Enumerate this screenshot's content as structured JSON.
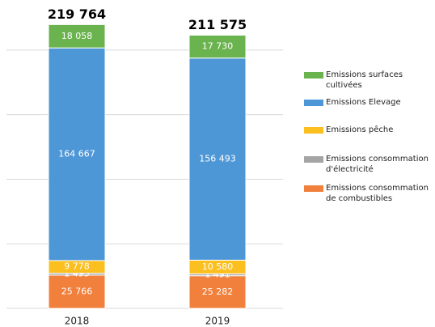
{
  "chart_data": {
    "type": "stacked_bar",
    "categories": [
      "2018",
      "2019"
    ],
    "series": [
      {
        "name": "Emissions consommation de combustibles",
        "color": "#f0803c",
        "values": [
          25766,
          25282
        ],
        "value_labels": [
          "25 766",
          "25 282"
        ]
      },
      {
        "name": "Emissions consommation d'électricité",
        "color": "#a5a5a5",
        "values": [
          1495,
          1491
        ],
        "value_labels": [
          "1 495",
          "1 491"
        ]
      },
      {
        "name": "Emissions pêche",
        "color": "#fbbf1f",
        "values": [
          9778,
          10580
        ],
        "value_labels": [
          "9 778",
          "10 580"
        ]
      },
      {
        "name": "Emissions Elevage",
        "color": "#4e97d6",
        "values": [
          164667,
          156493
        ],
        "value_labels": [
          "164 667",
          "156 493"
        ]
      },
      {
        "name": "Emissions surfaces cultivées",
        "color": "#6ab34f",
        "values": [
          18058,
          17730
        ],
        "value_labels": [
          "18 058",
          "17 730"
        ]
      }
    ],
    "totals": [
      219764,
      211575
    ],
    "total_labels": [
      "219 764",
      "211 575"
    ],
    "ylim": [
      0,
      220000
    ],
    "yticks": [
      0,
      50000,
      100000,
      150000,
      200000
    ],
    "grid": true,
    "legend": "right"
  }
}
